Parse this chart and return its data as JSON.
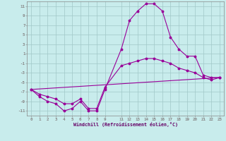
{
  "title": "",
  "xlabel": "Windchill (Refroidissement éolien,°C)",
  "background_color": "#c8ecec",
  "grid_color": "#a0c8c8",
  "line_color": "#990099",
  "x_ticks": [
    0,
    1,
    2,
    3,
    4,
    5,
    6,
    7,
    8,
    9,
    11,
    12,
    13,
    14,
    15,
    16,
    17,
    18,
    19,
    20,
    21,
    22,
    23
  ],
  "ylim": [
    -12,
    12
  ],
  "xlim": [
    -0.5,
    23.5
  ],
  "line1_x": [
    0,
    1,
    2,
    3,
    4,
    5,
    6,
    7,
    8,
    9,
    11,
    12,
    13,
    14,
    15,
    16,
    17,
    18,
    19,
    20,
    21,
    22,
    23
  ],
  "line1_y": [
    -6.5,
    -8.0,
    -9.0,
    -9.5,
    -11.0,
    -10.5,
    -9.0,
    -11.0,
    -11.0,
    -6.5,
    2.0,
    8.0,
    10.0,
    11.5,
    11.5,
    10.0,
    4.5,
    2.0,
    0.5,
    0.5,
    -3.5,
    -4.0,
    -4.0
  ],
  "line2_x": [
    0,
    1,
    2,
    3,
    4,
    5,
    6,
    7,
    8,
    9,
    11,
    12,
    13,
    14,
    15,
    16,
    17,
    18,
    19,
    20,
    21,
    22,
    23
  ],
  "line2_y": [
    -6.5,
    -7.5,
    -8.0,
    -8.5,
    -9.5,
    -9.5,
    -8.5,
    -10.5,
    -10.5,
    -6.0,
    -1.5,
    -1.0,
    -0.5,
    0.0,
    0.0,
    -0.5,
    -1.0,
    -2.0,
    -2.5,
    -3.0,
    -4.0,
    -4.5,
    -4.0
  ],
  "line3_x": [
    0,
    23
  ],
  "line3_y": [
    -6.5,
    -4.0
  ]
}
